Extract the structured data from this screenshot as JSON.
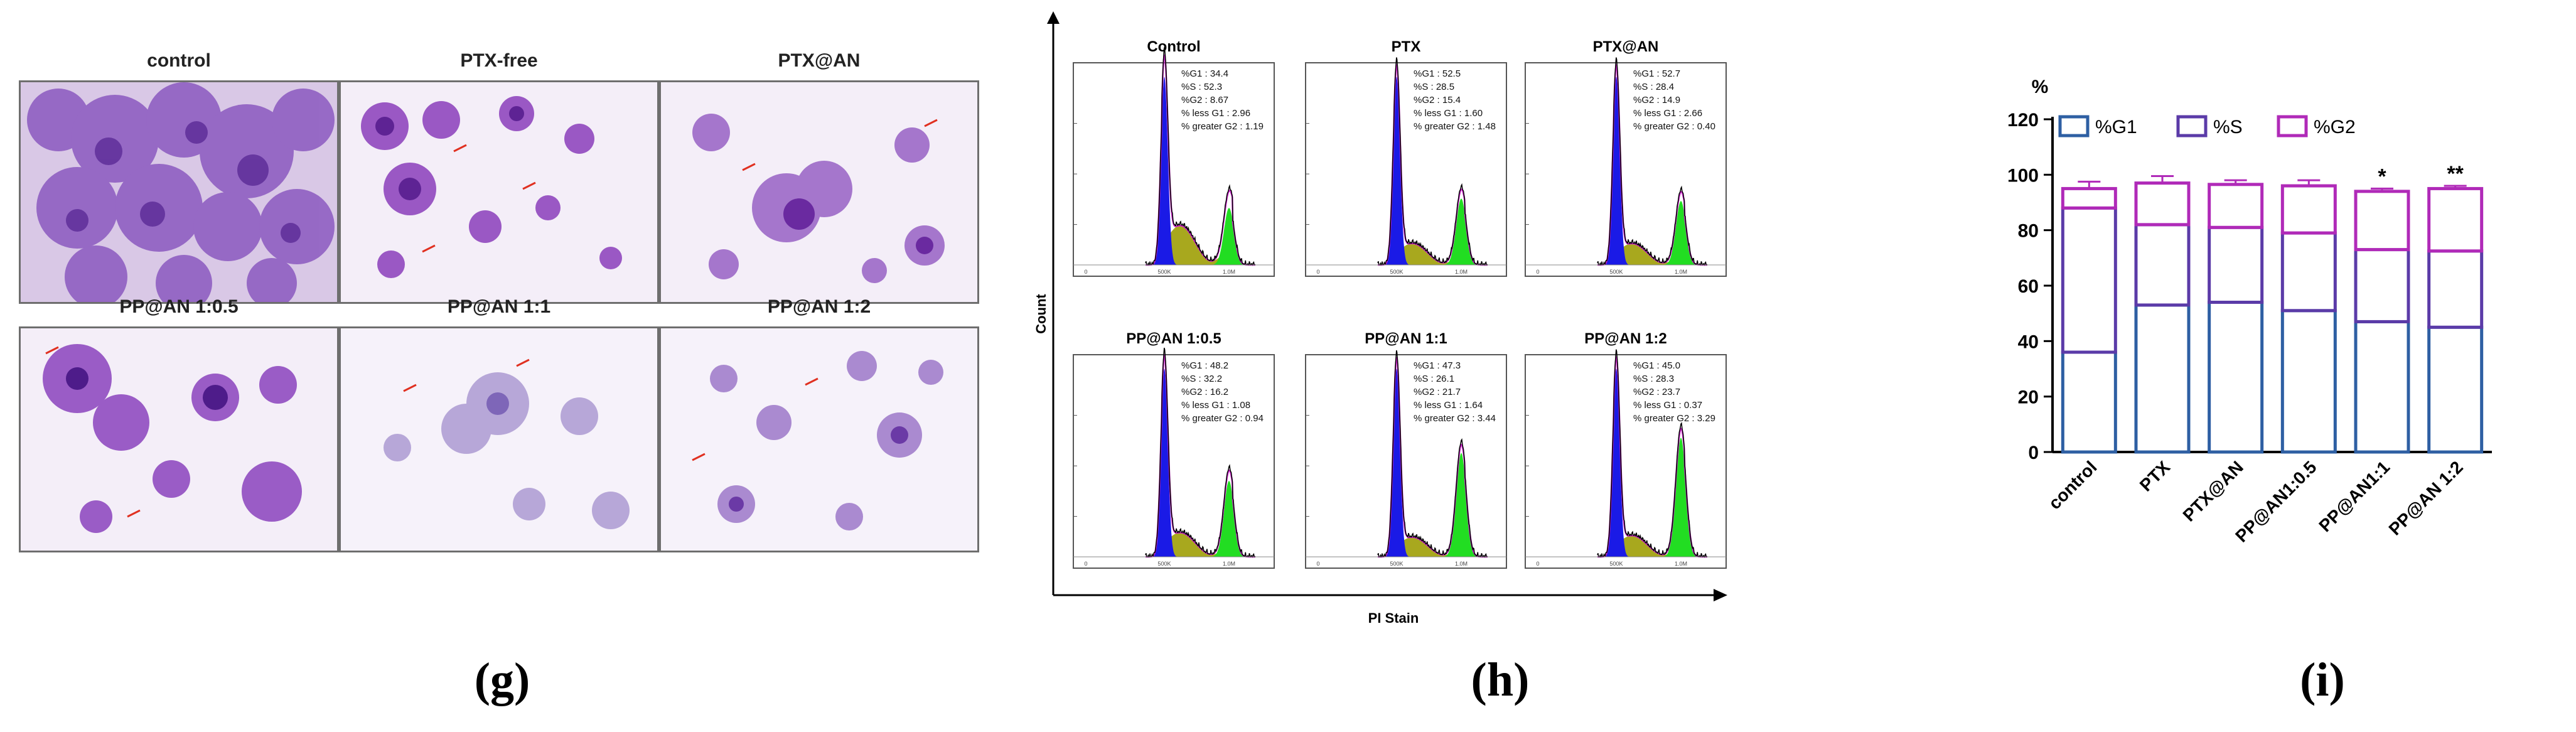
{
  "panel_labels": [
    "(g)",
    "(h)",
    "(i)"
  ],
  "micrographs": {
    "titles": [
      "control",
      "PTX-free",
      "PTX@AN",
      "PP@AN 1:0.5",
      "PP@AN 1:1",
      "PP@AN 1:2"
    ]
  },
  "chart_data": [
    {
      "type": "histogram",
      "panel": "h",
      "xlabel": "PI Stain",
      "ylabel": "Count",
      "series_colors": {
        "G1": "#1a1ae6",
        "S": "#a8a81e",
        "G2": "#22dd22",
        "fit": "#cc22cc",
        "outline": "#000000"
      },
      "subplots": [
        {
          "title": "Control",
          "stats": [
            "%G1 : 34.4",
            "%S : 52.3",
            "%G2 : 8.67",
            "% less G1  : 2.96",
            "% greater G2  : 1.19"
          ],
          "g1": 34.4,
          "s": 52.3,
          "g2": 8.67,
          "less_g1": 2.96,
          "greater_g2": 1.19
        },
        {
          "title": "PTX",
          "stats": [
            "%G1 : 52.5",
            "%S : 28.5",
            "%G2 : 15.4",
            "% less G1  : 1.60",
            "% greater G2  : 1.48"
          ],
          "g1": 52.5,
          "s": 28.5,
          "g2": 15.4,
          "less_g1": 1.6,
          "greater_g2": 1.48
        },
        {
          "title": "PTX@AN",
          "stats": [
            "%G1 : 52.7",
            "%S : 28.4",
            "%G2 : 14.9",
            "% less G1  : 2.66",
            "% greater G2  : 0.40"
          ],
          "g1": 52.7,
          "s": 28.4,
          "g2": 14.9,
          "less_g1": 2.66,
          "greater_g2": 0.4
        },
        {
          "title": "PP@AN 1:0.5",
          "stats": [
            "%G1 : 48.2",
            "%S : 32.2",
            "%G2 : 16.2",
            "% less G1  : 1.08",
            "% greater G2  : 0.94"
          ],
          "g1": 48.2,
          "s": 32.2,
          "g2": 16.2,
          "less_g1": 1.08,
          "greater_g2": 0.94
        },
        {
          "title": "PP@AN 1:1",
          "stats": [
            "%G1 : 47.3",
            "%S : 26.1",
            "%G2 : 21.7",
            "% less G1  : 1.64",
            "% greater G2  : 3.44"
          ],
          "g1": 47.3,
          "s": 26.1,
          "g2": 21.7,
          "less_g1": 1.64,
          "greater_g2": 3.44
        },
        {
          "title": "PP@AN 1:2",
          "stats": [
            "%G1 : 45.0",
            "%S : 28.3",
            "%G2 : 23.7",
            "% less G1  : 0.37",
            "% greater G2  : 3.29"
          ],
          "g1": 45.0,
          "s": 28.3,
          "g2": 23.7,
          "less_g1": 0.37,
          "greater_g2": 3.29
        }
      ]
    },
    {
      "type": "bar",
      "panel": "i",
      "stacked": true,
      "ylabel": "%",
      "ylim": [
        0,
        120
      ],
      "yticks": [
        0,
        20,
        40,
        60,
        80,
        100,
        120
      ],
      "categories": [
        "control",
        "PTX",
        "PTX@AN",
        "PP@AN1:0.5",
        "PP@AN1:1",
        "PP@AN 1:2"
      ],
      "series": [
        {
          "name": "%G1",
          "color": "#2e5fa3",
          "values": [
            36,
            53,
            54,
            51,
            47,
            45
          ],
          "errors": [
            2.5,
            4.5,
            2.5,
            2.0,
            2.0,
            2.0
          ]
        },
        {
          "name": "%S",
          "color": "#5b3ba8",
          "values": [
            52,
            29,
            27,
            28,
            26,
            27.5
          ],
          "errors": [
            1.0,
            3.0,
            3.0,
            2.0,
            3.0,
            1.5
          ]
        },
        {
          "name": "%G2",
          "color": "#b02ab8",
          "values": [
            7,
            15,
            15.5,
            17,
            21,
            22.5
          ],
          "errors": [
            2.5,
            2.5,
            1.5,
            2.0,
            1.0,
            1.0
          ]
        }
      ],
      "significance": [
        "",
        "",
        "",
        "",
        "*",
        "**"
      ],
      "legend": [
        "%G1",
        "%S",
        "%G2"
      ],
      "legend_position": "top"
    }
  ]
}
